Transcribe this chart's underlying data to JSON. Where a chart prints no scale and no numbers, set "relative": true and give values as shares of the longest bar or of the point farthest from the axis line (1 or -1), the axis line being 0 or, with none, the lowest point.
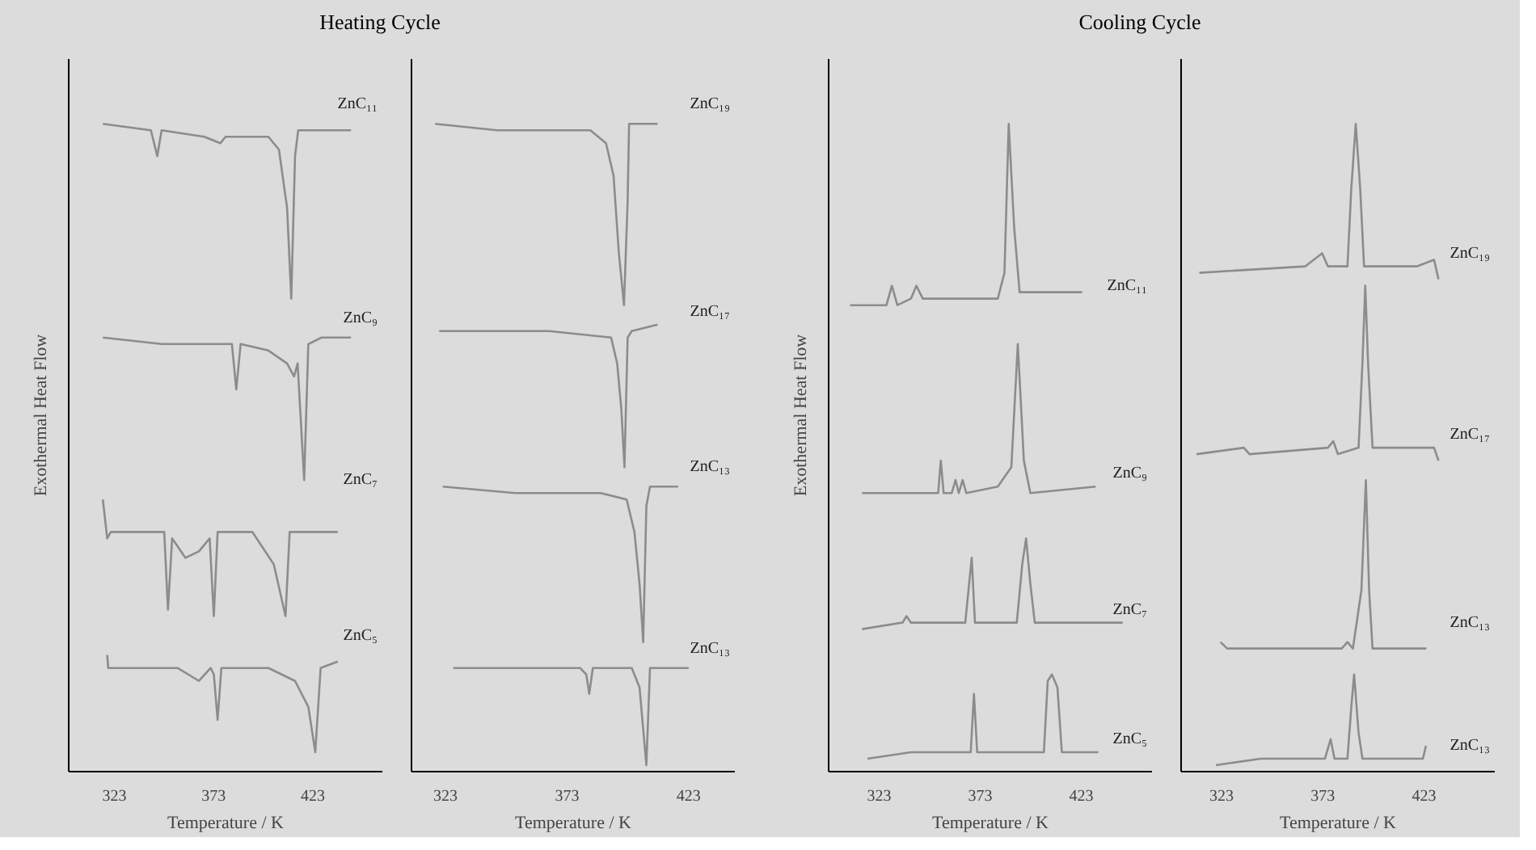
{
  "chart_data": [
    {
      "type": "line",
      "title": "Heating Cycle",
      "xlabel": "Temperature / K",
      "ylabel": "Exothermal Heat Flow",
      "relative": true,
      "tick_labels": "x",
      "xlim": [
        300,
        458
      ],
      "xticks": [
        323,
        373,
        423
      ],
      "series": [
        {
          "name": "ZnC₁₁",
          "color": "#8c8c8c",
          "x": [
            317.2,
            341.4,
            344.6,
            346.8,
            368.3,
            376.4,
            379.0,
            400.6,
            405.9,
            410.0,
            412.1,
            414.0,
            415.6,
            427.4,
            442.2
          ],
          "values": [
            1.0,
            0.99,
            0.95,
            0.99,
            0.98,
            0.97,
            0.98,
            0.98,
            0.96,
            0.87,
            0.73,
            0.95,
            0.99,
            0.99,
            0.99
          ]
        },
        {
          "name": "ZnC₉",
          "color": "#8c8c8c",
          "x": [
            317.2,
            346.8,
            379.0,
            382.2,
            384.4,
            386.6,
            400.6,
            410.0,
            413.5,
            415.3,
            418.6,
            420.7,
            427.4,
            442.2
          ],
          "values": [
            0.67,
            0.66,
            0.66,
            0.66,
            0.59,
            0.66,
            0.65,
            0.63,
            0.61,
            0.63,
            0.45,
            0.66,
            0.67,
            0.67
          ]
        },
        {
          "name": "ZnC₇",
          "color": "#8c8c8c",
          "x": [
            317.2,
            319.4,
            321.2,
            348.1,
            350.0,
            352.1,
            358.8,
            365.6,
            371.0,
            373.1,
            375.0,
            392.5,
            403.3,
            409.2,
            411.3,
            435.5
          ],
          "values": [
            0.42,
            0.36,
            0.37,
            0.37,
            0.25,
            0.36,
            0.33,
            0.34,
            0.36,
            0.24,
            0.37,
            0.37,
            0.32,
            0.24,
            0.37,
            0.37
          ]
        },
        {
          "name": "ZnC₅",
          "color": "#8c8c8c",
          "x": [
            319.4,
            319.9,
            354.8,
            365.6,
            371.5,
            373.1,
            375.0,
            376.9,
            400.6,
            414.0,
            420.7,
            424.2,
            426.9,
            435.5
          ],
          "values": [
            0.18,
            0.16,
            0.16,
            0.14,
            0.16,
            0.15,
            0.08,
            0.16,
            0.16,
            0.14,
            0.1,
            0.03,
            0.16,
            0.17
          ]
        }
      ]
    },
    {
      "type": "line",
      "xlabel": "Temperature / K",
      "relative": true,
      "tick_labels": "x",
      "xlim": [
        309,
        442
      ],
      "xticks": [
        323,
        373,
        423
      ],
      "series": [
        {
          "name": "ZnC₁₉",
          "color": "#8c8c8c",
          "x": [
            318.7,
            344.3,
            382.6,
            389.0,
            392.1,
            394.3,
            396.4,
            397.9,
            398.5,
            410.2
          ],
          "values": [
            1.0,
            0.99,
            0.99,
            0.97,
            0.92,
            0.8,
            0.72,
            0.88,
            1.0,
            1.0
          ]
        },
        {
          "name": "ZnC₁₇",
          "color": "#8c8c8c",
          "x": [
            320.4,
            365.6,
            391.1,
            393.6,
            395.3,
            396.6,
            397.9,
            399.6,
            410.2
          ],
          "values": [
            0.68,
            0.68,
            0.67,
            0.63,
            0.56,
            0.47,
            0.67,
            0.68,
            0.69
          ]
        },
        {
          "name": "ZnC₁₃",
          "color": "#8c8c8c",
          "x": [
            321.9,
            351.7,
            386.8,
            397.5,
            400.7,
            402.8,
            404.3,
            405.6,
            407.1,
            418.7
          ],
          "values": [
            0.44,
            0.43,
            0.43,
            0.42,
            0.37,
            0.29,
            0.2,
            0.41,
            0.44,
            0.44
          ]
        },
        {
          "name": "ZnC₁₃",
          "color": "#8c8c8c",
          "x": [
            326.2,
            378.3,
            380.9,
            382.1,
            383.6,
            399.6,
            402.8,
            405.6,
            407.1,
            423.0
          ],
          "values": [
            0.16,
            0.16,
            0.15,
            0.12,
            0.16,
            0.16,
            0.13,
            0.01,
            0.16,
            0.16
          ]
        }
      ]
    },
    {
      "type": "line",
      "title": "Cooling Cycle",
      "xlabel": "Temperature / K",
      "ylabel": "Exothermal Heat Flow",
      "relative": true,
      "tick_labels": "x",
      "xlim": [
        298,
        458
      ],
      "xticks": [
        323,
        373,
        423
      ],
      "series": [
        {
          "name": "ZnC₁₁",
          "color": "#8c8c8c",
          "x": [
            308.6,
            326.6,
            329.3,
            332.0,
            338.7,
            341.4,
            344.6,
            348.1,
            352.2,
            381.7,
            385.0,
            387.1,
            389.8,
            392.5,
            423.4
          ],
          "values": [
            0.72,
            0.72,
            0.75,
            0.72,
            0.73,
            0.75,
            0.73,
            0.73,
            0.73,
            0.73,
            0.77,
            1.0,
            0.84,
            0.74,
            0.74
          ]
        },
        {
          "name": "ZnC₉",
          "color": "#8c8c8c",
          "x": [
            314.5,
            349.5,
            352.2,
            353.5,
            354.9,
            358.9,
            360.8,
            362.4,
            364.3,
            366.1,
            381.7,
            388.4,
            391.6,
            394.6,
            397.8,
            430.1
          ],
          "values": [
            0.43,
            0.43,
            0.43,
            0.48,
            0.43,
            0.43,
            0.45,
            0.43,
            0.45,
            0.43,
            0.44,
            0.47,
            0.66,
            0.48,
            0.43,
            0.44
          ]
        },
        {
          "name": "ZnC₇",
          "color": "#8c8c8c",
          "x": [
            314.5,
            334.6,
            336.5,
            338.7,
            365.6,
            368.8,
            370.4,
            391.1,
            393.8,
            395.7,
            397.8,
            400.0,
            443.5
          ],
          "values": [
            0.22,
            0.23,
            0.24,
            0.23,
            0.23,
            0.33,
            0.23,
            0.23,
            0.32,
            0.36,
            0.29,
            0.23,
            0.23
          ]
        },
        {
          "name": "ZnC₅",
          "color": "#8c8c8c",
          "x": [
            317.2,
            338.7,
            368.3,
            369.9,
            371.5,
            404.5,
            406.4,
            408.5,
            411.2,
            413.4,
            431.4
          ],
          "values": [
            0.02,
            0.03,
            0.03,
            0.12,
            0.03,
            0.03,
            0.14,
            0.15,
            0.13,
            0.03,
            0.03
          ]
        }
      ]
    },
    {
      "type": "line",
      "xlabel": "Temperature / K",
      "relative": true,
      "tick_labels": "x",
      "xlim": [
        303,
        458
      ],
      "xticks": [
        323,
        373,
        423
      ],
      "series": [
        {
          "name": "ZnC₁₉",
          "color": "#8c8c8c",
          "x": [
            312.0,
            364.4,
            372.7,
            375.5,
            385.2,
            387.1,
            389.3,
            391.5,
            393.4,
            419.7,
            428.0,
            430.2
          ],
          "values": [
            0.77,
            0.78,
            0.8,
            0.78,
            0.78,
            0.9,
            1.0,
            0.9,
            0.78,
            0.78,
            0.79,
            0.76
          ]
        },
        {
          "name": "ZnC₁₇",
          "color": "#8c8c8c",
          "x": [
            310.6,
            334.0,
            336.8,
            375.5,
            378.2,
            380.5,
            390.7,
            392.6,
            394.0,
            395.4,
            397.6,
            428.0,
            430.2
          ],
          "values": [
            0.49,
            0.5,
            0.49,
            0.5,
            0.51,
            0.49,
            0.5,
            0.63,
            0.75,
            0.63,
            0.5,
            0.5,
            0.48
          ]
        },
        {
          "name": "ZnC₁₃",
          "color": "#8c8c8c",
          "x": [
            322.4,
            325.8,
            382.4,
            385.2,
            387.9,
            392.1,
            394.3,
            395.9,
            397.6,
            424.2
          ],
          "values": [
            0.2,
            0.19,
            0.19,
            0.2,
            0.19,
            0.28,
            0.45,
            0.28,
            0.19,
            0.19
          ]
        },
        {
          "name": "ZnC₁₃",
          "color": "#8c8c8c",
          "x": [
            320.2,
            342.3,
            345.7,
            349.2,
            374.1,
            376.9,
            378.8,
            385.2,
            387.1,
            388.5,
            390.7,
            392.6,
            422.5,
            424.0
          ],
          "values": [
            0.01,
            0.02,
            0.02,
            0.02,
            0.02,
            0.05,
            0.02,
            0.02,
            0.1,
            0.15,
            0.06,
            0.02,
            0.02,
            0.04
          ]
        }
      ]
    }
  ]
}
